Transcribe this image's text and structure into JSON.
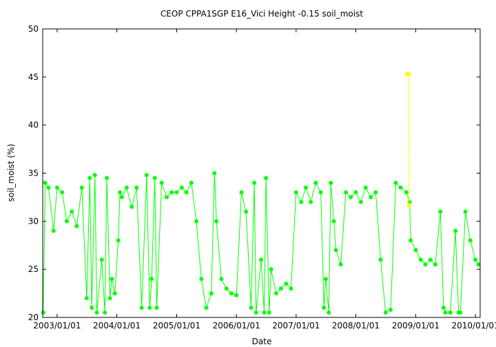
{
  "chart_data": {
    "type": "line",
    "title": "CEOP CPPA1SGP E16_Vici Height -0.15 soil_moist",
    "x_label": "Date",
    "y_label": "soil_moist (%)",
    "xlim": [
      "2002/10/05",
      "2010/01/30"
    ],
    "xticks": [
      "2003/01/01",
      "2004/01/01",
      "2005/01/01",
      "2006/01/01",
      "2007/01/01",
      "2008/01/01",
      "2009/01/01",
      "2010/01/01"
    ],
    "ylim": [
      20,
      50
    ],
    "yticks": [
      20,
      25,
      30,
      35,
      40,
      45,
      50
    ],
    "grid": false,
    "series": [
      {
        "color": "#00ff00",
        "x": [
          "2002/10/08",
          "2002/10/20",
          "2002/11/10",
          "2002/12/10",
          "2003/01/01",
          "2003/02/01",
          "2003/03/01",
          "2003/04/01",
          "2003/05/01",
          "2003/06/01",
          "2003/07/01",
          "2003/07/20",
          "2003/08/01",
          "2003/08/20",
          "2003/09/01",
          "2003/10/01",
          "2003/10/20",
          "2003/11/01",
          "2003/11/20",
          "2003/12/01",
          "2003/12/20",
          "2004/01/10",
          "2004/01/20",
          "2004/02/01",
          "2004/03/01",
          "2004/04/01",
          "2004/05/01",
          "2004/06/01",
          "2004/07/01",
          "2004/07/20",
          "2004/08/01",
          "2004/08/20",
          "2004/09/01",
          "2004/10/01",
          "2004/11/01",
          "2004/12/01",
          "2005/01/01",
          "2005/02/01",
          "2005/03/01",
          "2005/04/01",
          "2005/05/01",
          "2005/06/01",
          "2005/07/01",
          "2005/08/01",
          "2005/08/20",
          "2005/09/01",
          "2005/10/01",
          "2005/11/01",
          "2005/12/01",
          "2006/01/01",
          "2006/02/01",
          "2006/03/01",
          "2006/04/01",
          "2006/04/20",
          "2006/05/01",
          "2006/06/01",
          "2006/06/20",
          "2006/07/01",
          "2006/07/20",
          "2006/08/01",
          "2006/09/01",
          "2006/10/01",
          "2006/11/01",
          "2006/12/01",
          "2007/01/01",
          "2007/02/01",
          "2007/03/01",
          "2007/04/01",
          "2007/05/01",
          "2007/06/01",
          "2007/06/20",
          "2007/07/01",
          "2007/07/20",
          "2007/08/01",
          "2007/08/20",
          "2007/09/01",
          "2007/10/01",
          "2007/11/01",
          "2007/12/01",
          "2008/01/01",
          "2008/02/01",
          "2008/03/01",
          "2008/04/01",
          "2008/05/01",
          "2008/06/01",
          "2008/07/01",
          "2008/08/01",
          "2008/09/01",
          "2008/10/01",
          "2008/11/05",
          "2008/11/25",
          "2008/12/01",
          "2009/01/01",
          "2009/02/01",
          "2009/03/01",
          "2009/04/01",
          "2009/05/01",
          "2009/06/01",
          "2009/06/20",
          "2009/07/01",
          "2009/08/01",
          "2009/09/01",
          "2009/09/20",
          "2009/10/01",
          "2009/11/01",
          "2009/12/01",
          "2010/01/01",
          "2010/01/20"
        ],
        "values": [
          20.5,
          34,
          33.5,
          29,
          33.5,
          33,
          30,
          31,
          29.5,
          33.5,
          22,
          34.5,
          21,
          34.8,
          20.5,
          26,
          20.5,
          34.5,
          22,
          24,
          22.5,
          28,
          33,
          32.5,
          33.5,
          31.5,
          33.5,
          21,
          34.8,
          21,
          24,
          34.5,
          21,
          34,
          32.5,
          33,
          33,
          33.5,
          33,
          34,
          30,
          24,
          21,
          22.5,
          35,
          30,
          24,
          23,
          22.5,
          22.3,
          33,
          31,
          21,
          34,
          20.5,
          26,
          20.5,
          34.5,
          20.5,
          25,
          22.5,
          23,
          23.5,
          23,
          33,
          32,
          33.5,
          32,
          34,
          33,
          21,
          24,
          20.5,
          34,
          30,
          27,
          25.5,
          33,
          32.5,
          33,
          32,
          33.5,
          32.5,
          33,
          26,
          20.5,
          20.8,
          34,
          33.5,
          33,
          32,
          28,
          27,
          26,
          25.5,
          26,
          25.5,
          31,
          21,
          20.5,
          20.5,
          29,
          20.5,
          20.5,
          31,
          28,
          26,
          25.5
        ]
      },
      {
        "color": "#ffff00",
        "x": [
          "2008/11/08",
          "2008/11/16",
          "2008/11/20",
          "2008/11/22"
        ],
        "values": [
          45.3,
          45.3,
          45.3,
          31.6
        ]
      }
    ]
  }
}
